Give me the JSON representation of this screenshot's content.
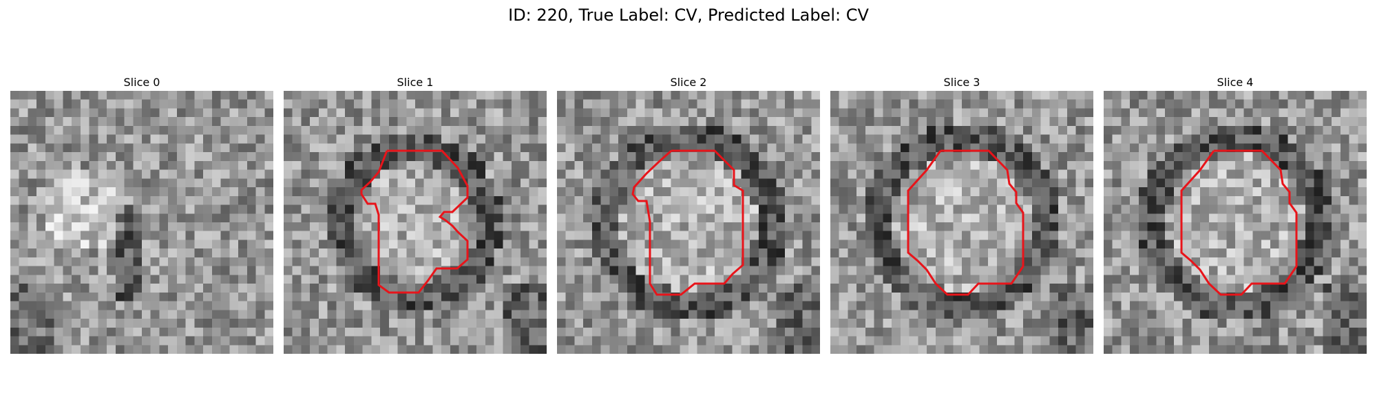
{
  "title": "ID: 220, True Label: CV, Predicted Label: CV",
  "contour_color": "#e8141a",
  "panels": [
    {
      "title": "Slice 0",
      "seed": 11,
      "has_contour": false,
      "pattern": "blob"
    },
    {
      "title": "Slice 1",
      "seed": 23,
      "has_contour": true,
      "pattern": "ring_small"
    },
    {
      "title": "Slice 2",
      "seed": 37,
      "has_contour": true,
      "pattern": "ring"
    },
    {
      "title": "Slice 3",
      "seed": 51,
      "has_contour": true,
      "pattern": "ring"
    },
    {
      "title": "Slice 4",
      "seed": 67,
      "has_contour": true,
      "pattern": "ring"
    }
  ]
}
